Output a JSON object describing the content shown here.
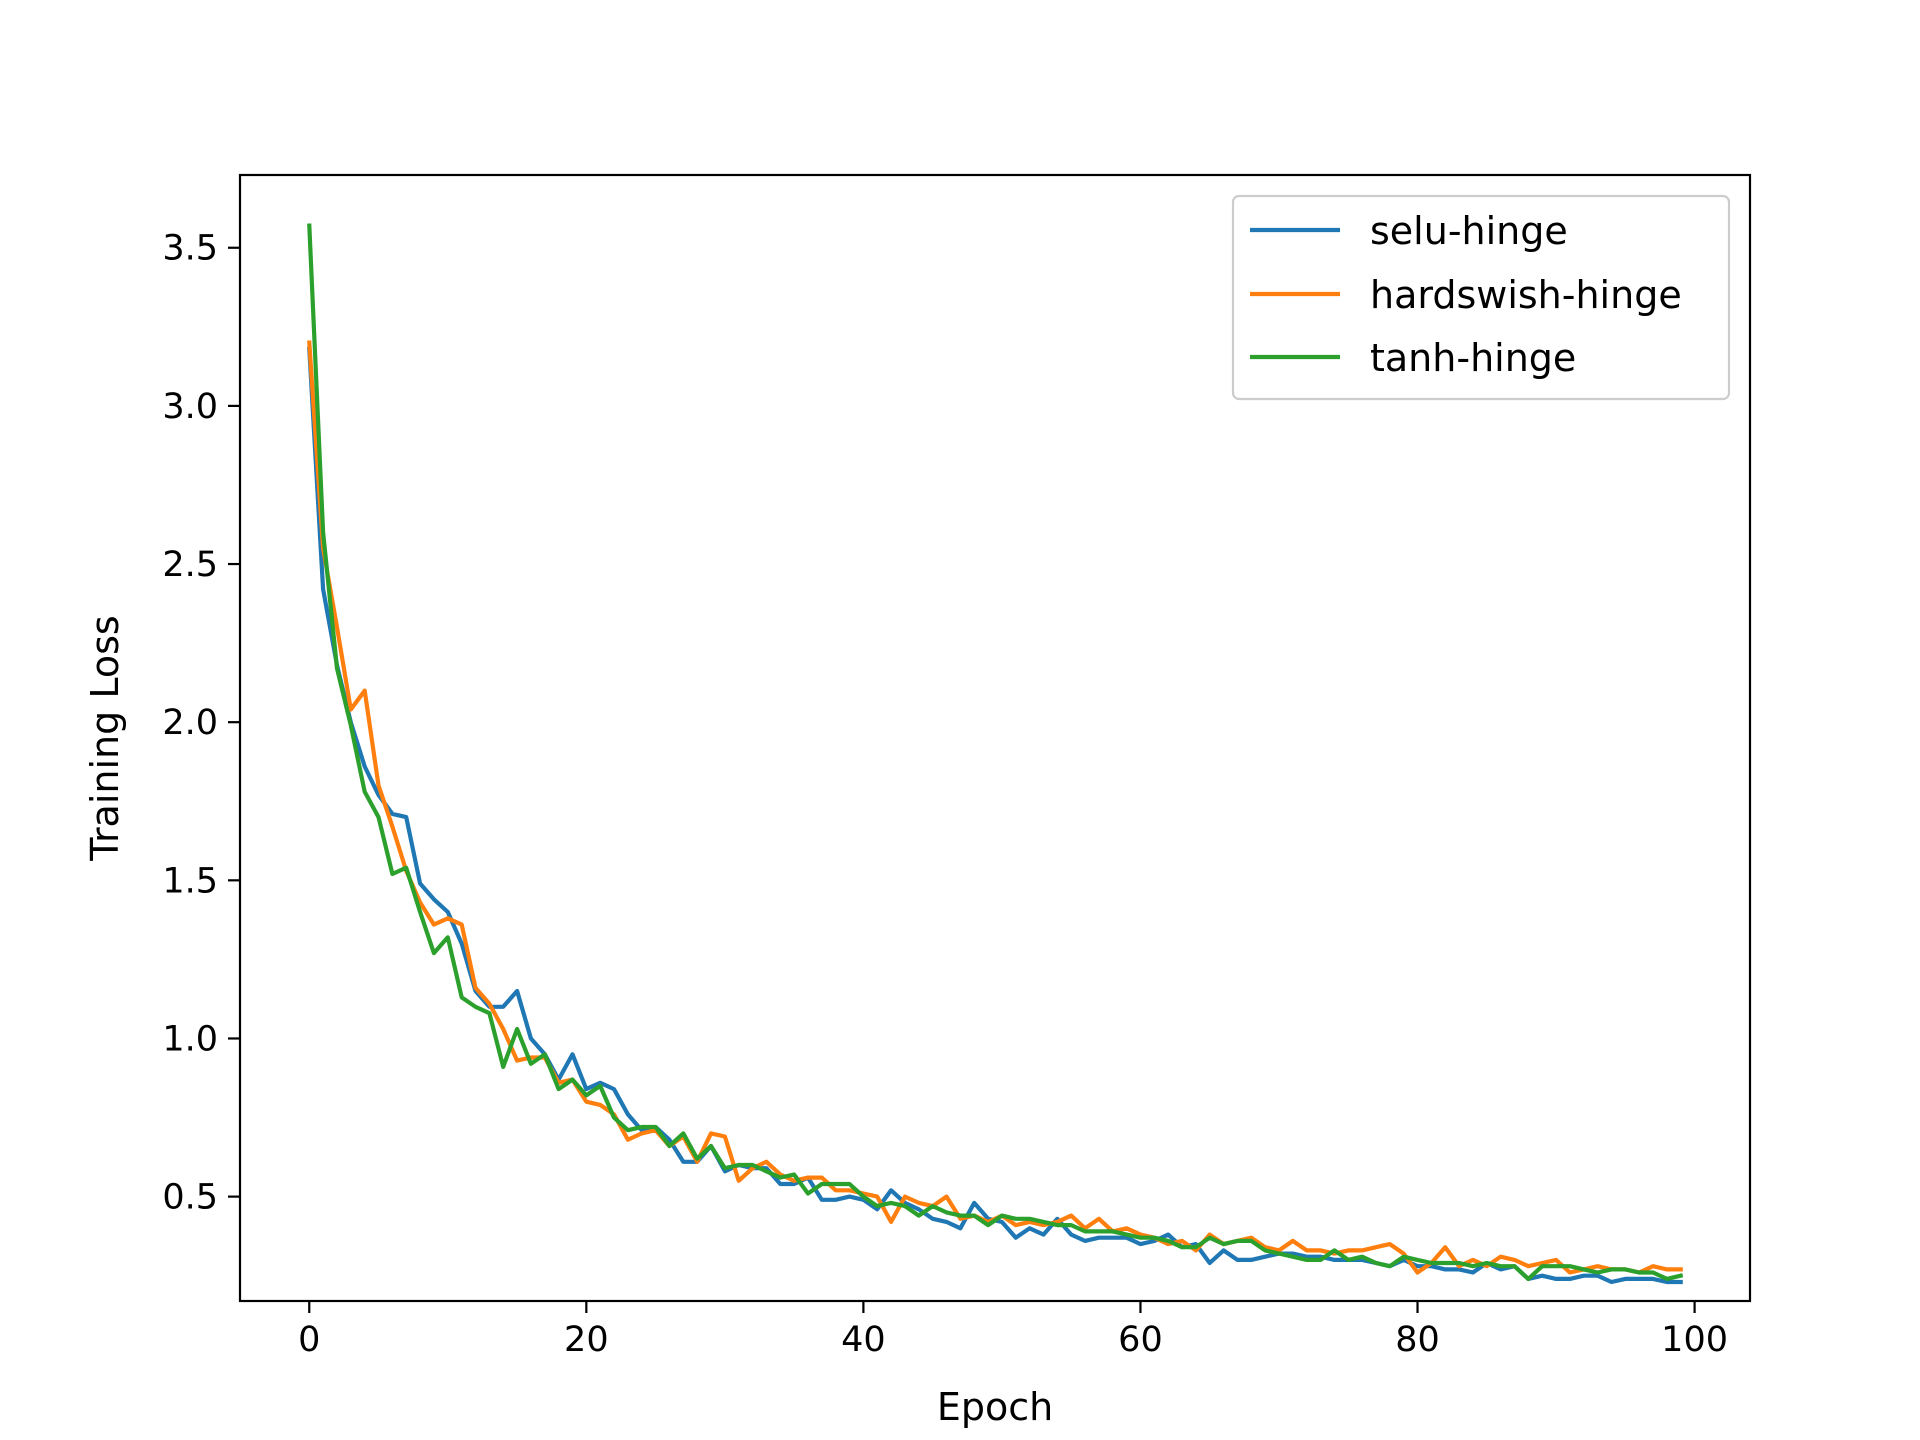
{
  "chart_data": {
    "type": "line",
    "xlabel": "Epoch",
    "ylabel": "Training Loss",
    "xlim": [
      -5,
      104
    ],
    "ylim": [
      0.17,
      3.73
    ],
    "xticks": [
      0,
      20,
      40,
      60,
      80,
      100
    ],
    "xtick_labels": [
      "0",
      "20",
      "40",
      "60",
      "80",
      "100"
    ],
    "yticks": [
      0.5,
      1.0,
      1.5,
      2.0,
      2.5,
      3.0,
      3.5
    ],
    "ytick_labels": [
      "0.5",
      "1.0",
      "1.5",
      "2.0",
      "2.5",
      "3.0",
      "3.5"
    ],
    "grid": false,
    "legend_position": "top-right",
    "x": [
      0,
      1,
      2,
      3,
      4,
      5,
      6,
      7,
      8,
      9,
      10,
      11,
      12,
      13,
      14,
      15,
      16,
      17,
      18,
      19,
      20,
      21,
      22,
      23,
      24,
      25,
      26,
      27,
      28,
      29,
      30,
      31,
      32,
      33,
      34,
      35,
      36,
      37,
      38,
      39,
      40,
      41,
      42,
      43,
      44,
      45,
      46,
      47,
      48,
      49,
      50,
      51,
      52,
      53,
      54,
      55,
      56,
      57,
      58,
      59,
      60,
      61,
      62,
      63,
      64,
      65,
      66,
      67,
      68,
      69,
      70,
      71,
      72,
      73,
      74,
      75,
      76,
      77,
      78,
      79,
      80,
      81,
      82,
      83,
      84,
      85,
      86,
      87,
      88,
      89,
      90,
      91,
      92,
      93,
      94,
      95,
      96,
      97,
      98,
      99
    ],
    "series": [
      {
        "name": "selu-hinge",
        "color": "#1f77b4",
        "values": [
          3.18,
          2.42,
          2.18,
          2.0,
          1.86,
          1.77,
          1.71,
          1.7,
          1.49,
          1.44,
          1.4,
          1.3,
          1.15,
          1.1,
          1.1,
          1.15,
          1.0,
          0.95,
          0.87,
          0.95,
          0.84,
          0.86,
          0.84,
          0.76,
          0.71,
          0.72,
          0.68,
          0.61,
          0.61,
          0.66,
          0.58,
          0.6,
          0.59,
          0.59,
          0.54,
          0.54,
          0.56,
          0.49,
          0.49,
          0.5,
          0.49,
          0.46,
          0.52,
          0.48,
          0.46,
          0.43,
          0.42,
          0.4,
          0.48,
          0.43,
          0.42,
          0.37,
          0.4,
          0.38,
          0.43,
          0.38,
          0.36,
          0.37,
          0.37,
          0.37,
          0.35,
          0.36,
          0.38,
          0.34,
          0.35,
          0.29,
          0.33,
          0.3,
          0.3,
          0.31,
          0.32,
          0.32,
          0.31,
          0.31,
          0.3,
          0.3,
          0.3,
          0.29,
          0.28,
          0.3,
          0.28,
          0.28,
          0.27,
          0.27,
          0.26,
          0.29,
          0.27,
          0.28,
          0.24,
          0.25,
          0.24,
          0.24,
          0.25,
          0.25,
          0.23,
          0.24,
          0.24,
          0.24,
          0.23,
          0.23
        ]
      },
      {
        "name": "hardswish-hinge",
        "color": "#ff7f0e",
        "values": [
          3.2,
          2.55,
          2.3,
          2.04,
          2.1,
          1.8,
          1.67,
          1.53,
          1.43,
          1.36,
          1.38,
          1.36,
          1.16,
          1.11,
          1.03,
          0.93,
          0.94,
          0.94,
          0.86,
          0.87,
          0.8,
          0.79,
          0.76,
          0.68,
          0.7,
          0.71,
          0.66,
          0.69,
          0.61,
          0.7,
          0.69,
          0.55,
          0.59,
          0.61,
          0.57,
          0.55,
          0.56,
          0.56,
          0.52,
          0.52,
          0.51,
          0.5,
          0.42,
          0.5,
          0.48,
          0.47,
          0.5,
          0.43,
          0.44,
          0.42,
          0.44,
          0.41,
          0.42,
          0.41,
          0.42,
          0.44,
          0.4,
          0.43,
          0.39,
          0.4,
          0.38,
          0.37,
          0.35,
          0.36,
          0.33,
          0.38,
          0.35,
          0.36,
          0.37,
          0.34,
          0.33,
          0.36,
          0.33,
          0.33,
          0.32,
          0.33,
          0.33,
          0.34,
          0.35,
          0.32,
          0.26,
          0.29,
          0.34,
          0.28,
          0.3,
          0.28,
          0.31,
          0.3,
          0.28,
          0.29,
          0.3,
          0.26,
          0.27,
          0.28,
          0.27,
          0.27,
          0.26,
          0.28,
          0.27,
          0.27
        ]
      },
      {
        "name": "tanh-hinge",
        "color": "#2ca02c",
        "values": [
          3.57,
          2.6,
          2.17,
          1.99,
          1.78,
          1.7,
          1.52,
          1.54,
          1.4,
          1.27,
          1.32,
          1.13,
          1.1,
          1.08,
          0.91,
          1.03,
          0.92,
          0.95,
          0.84,
          0.87,
          0.82,
          0.85,
          0.75,
          0.71,
          0.72,
          0.72,
          0.66,
          0.7,
          0.62,
          0.66,
          0.59,
          0.6,
          0.6,
          0.58,
          0.56,
          0.57,
          0.51,
          0.54,
          0.54,
          0.54,
          0.5,
          0.47,
          0.48,
          0.47,
          0.44,
          0.47,
          0.45,
          0.44,
          0.44,
          0.41,
          0.44,
          0.43,
          0.43,
          0.42,
          0.41,
          0.41,
          0.39,
          0.39,
          0.39,
          0.38,
          0.37,
          0.37,
          0.36,
          0.34,
          0.34,
          0.37,
          0.35,
          0.36,
          0.36,
          0.33,
          0.32,
          0.31,
          0.3,
          0.3,
          0.33,
          0.3,
          0.31,
          0.29,
          0.28,
          0.31,
          0.3,
          0.29,
          0.29,
          0.29,
          0.28,
          0.29,
          0.28,
          0.28,
          0.24,
          0.28,
          0.28,
          0.28,
          0.27,
          0.26,
          0.27,
          0.27,
          0.26,
          0.26,
          0.24,
          0.25
        ]
      }
    ]
  }
}
